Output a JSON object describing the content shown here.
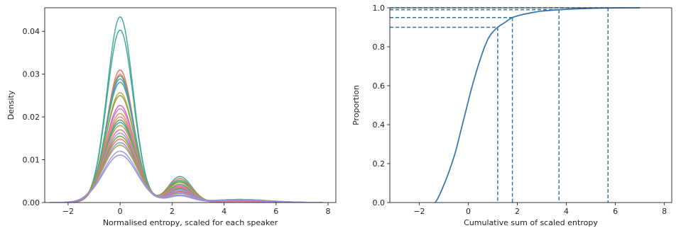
{
  "chart_data": [
    {
      "type": "line",
      "chart_kind": "kde",
      "title": "",
      "xlabel": "Normalised entropy, scaled for each speaker",
      "ylabel": "Density",
      "xlim": [
        -2.9,
        8.3
      ],
      "ylim": [
        0,
        0.0455
      ],
      "xticks": [
        -2,
        0,
        2,
        4,
        6,
        8
      ],
      "xtick_labels": [
        "−2",
        "0",
        "2",
        "4",
        "6",
        "8"
      ],
      "yticks": [
        0,
        0.01,
        0.02,
        0.03,
        0.04
      ],
      "ytick_labels": [
        "0.00",
        "0.01",
        "0.02",
        "0.03",
        "0.04"
      ],
      "grid": false,
      "legend": "none",
      "peak_x": 0.0,
      "series": [
        {
          "peak": 0.0434,
          "color": "#3ba88f"
        },
        {
          "peak": 0.0403,
          "color": "#3ba88f"
        },
        {
          "peak": 0.031,
          "color": "#e8735a"
        },
        {
          "peak": 0.03,
          "color": "#f07a70"
        },
        {
          "peak": 0.0296,
          "color": "#4aa35e"
        },
        {
          "peak": 0.0289,
          "color": "#5b93d8"
        },
        {
          "peak": 0.0281,
          "color": "#3aa3a0"
        },
        {
          "peak": 0.0257,
          "color": "#c9a43a"
        },
        {
          "peak": 0.025,
          "color": "#7aa83a"
        },
        {
          "peak": 0.0227,
          "color": "#e05cb5"
        },
        {
          "peak": 0.0219,
          "color": "#c77dd8"
        },
        {
          "peak": 0.0208,
          "color": "#d29d3a"
        },
        {
          "peak": 0.02,
          "color": "#f2788c"
        },
        {
          "peak": 0.0193,
          "color": "#5aa646"
        },
        {
          "peak": 0.0187,
          "color": "#3c9fc4"
        },
        {
          "peak": 0.018,
          "color": "#b8a033"
        },
        {
          "peak": 0.017,
          "color": "#e6709a"
        },
        {
          "peak": 0.0162,
          "color": "#9e8ce0"
        },
        {
          "peak": 0.0155,
          "color": "#6ba63b"
        },
        {
          "peak": 0.0148,
          "color": "#ee7050"
        },
        {
          "peak": 0.014,
          "color": "#7f8fe6"
        },
        {
          "peak": 0.0134,
          "color": "#a8a432"
        },
        {
          "peak": 0.012,
          "color": "#8a9ee8"
        },
        {
          "peak": 0.0111,
          "color": "#9b8ae8"
        }
      ]
    },
    {
      "type": "line",
      "chart_kind": "ecdf",
      "title": "",
      "xlabel": "Cumulative sum of scaled entropy",
      "ylabel": "Proportion",
      "xlim": [
        -3.2,
        8.3
      ],
      "ylim": [
        0,
        1.0
      ],
      "xticks": [
        -2,
        0,
        2,
        4,
        6,
        8
      ],
      "xtick_labels": [
        "−2",
        "0",
        "2",
        "4",
        "6",
        "8"
      ],
      "yticks": [
        0,
        0.2,
        0.4,
        0.6,
        0.8,
        1.0
      ],
      "ytick_labels": [
        "0.0",
        "0.2",
        "0.4",
        "0.6",
        "0.8",
        "1.0"
      ],
      "grid": false,
      "legend": "none",
      "color": "#2e75b0",
      "x": [
        -1.35,
        -1.25,
        -1.1,
        -0.9,
        -0.7,
        -0.5,
        -0.3,
        -0.1,
        0.1,
        0.3,
        0.5,
        0.7,
        0.9,
        1.2,
        1.5,
        1.8,
        2.2,
        2.6,
        3.0,
        3.7,
        4.5,
        5.7,
        7.0
      ],
      "y": [
        0.0,
        0.02,
        0.06,
        0.12,
        0.19,
        0.27,
        0.37,
        0.47,
        0.57,
        0.66,
        0.74,
        0.81,
        0.86,
        0.9,
        0.925,
        0.95,
        0.965,
        0.975,
        0.983,
        0.99,
        0.995,
        0.999,
        1.0
      ],
      "quantile_markers": [
        {
          "x": 1.2,
          "y": 0.9
        },
        {
          "x": 1.8,
          "y": 0.95
        },
        {
          "x": 3.7,
          "y": 0.99
        },
        {
          "x": 5.7,
          "y": 1.0
        }
      ]
    }
  ]
}
